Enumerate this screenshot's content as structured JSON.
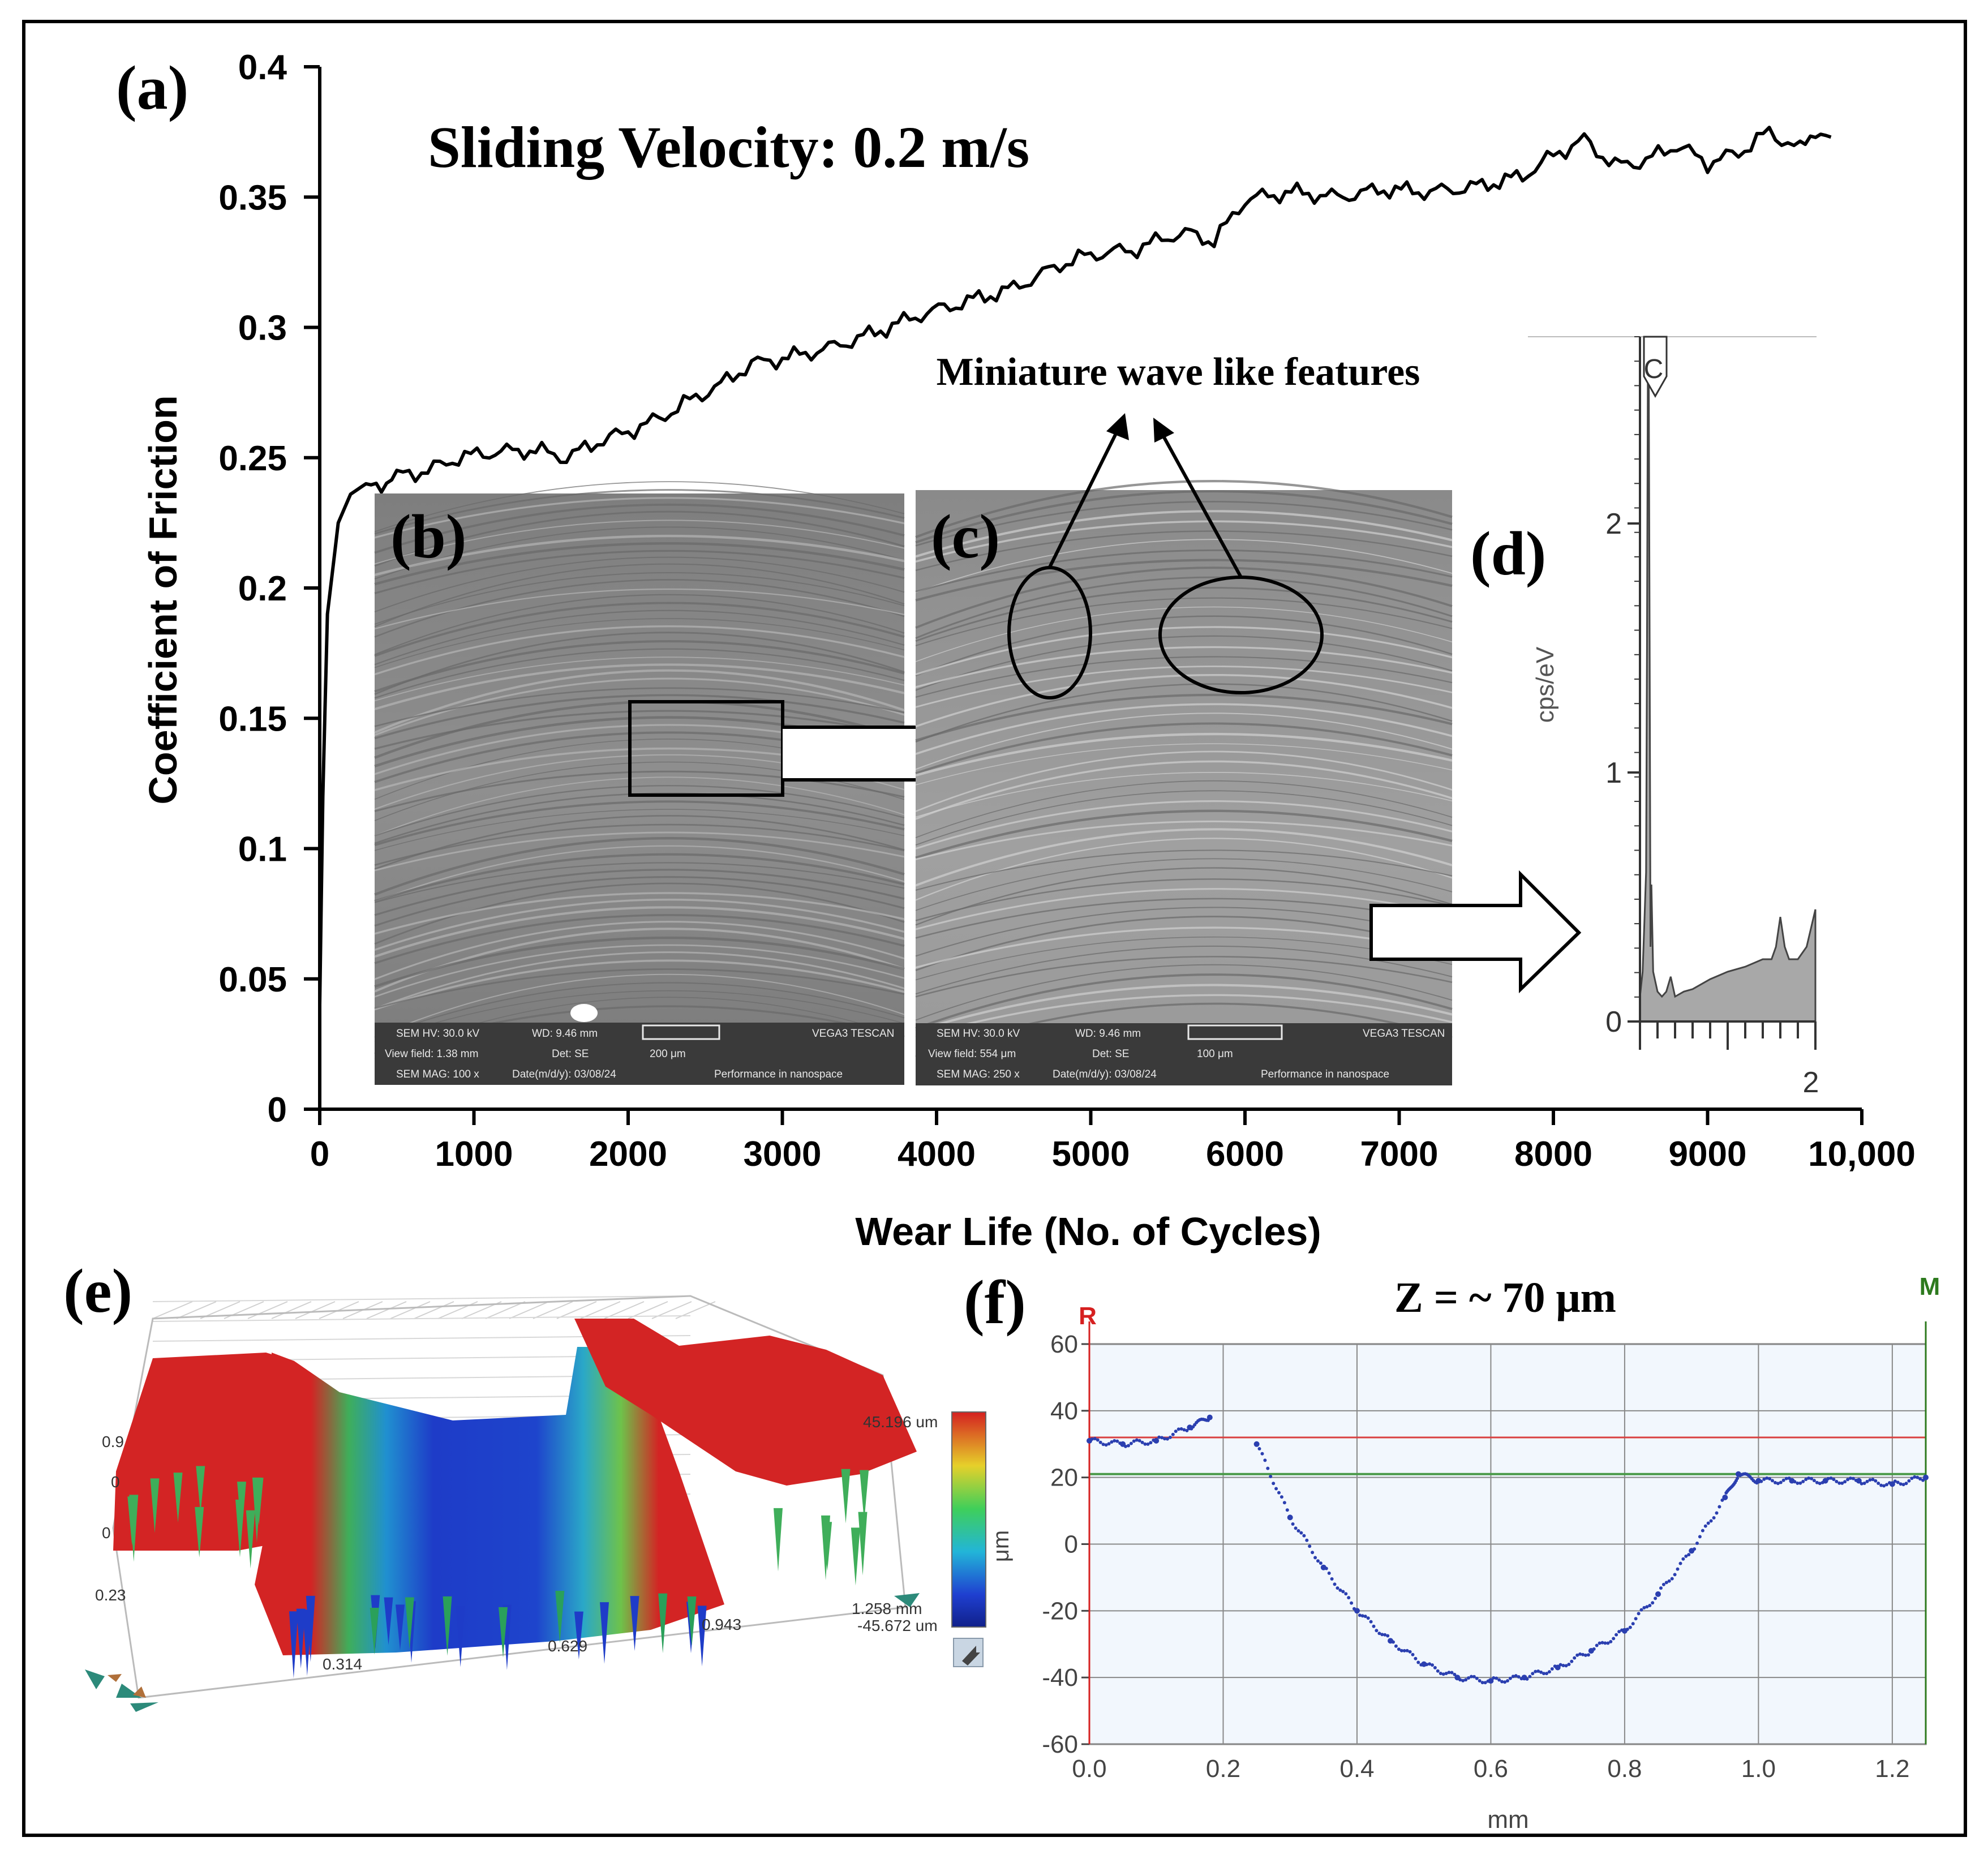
{
  "panels": {
    "a": "(a)",
    "b": "(b)",
    "c": "(c)",
    "d": "(d)",
    "e": "(e)",
    "f": "(f)"
  },
  "annotations": {
    "velocity": "Sliding Velocity: 0.2 m/s",
    "wave": "Miniature wave like features",
    "z_depth": "Z = ~ 70 μm"
  },
  "sem_b": {
    "hv": "SEM HV: 30.0 kV",
    "wd": "WD: 9.46 mm",
    "brand": "VEGA3 TESCAN",
    "view": "View field: 1.38 mm",
    "det": "Det: SE",
    "scale": "200 μm",
    "mag": "SEM MAG: 100 x",
    "date": "Date(m/d/y): 03/08/24",
    "tag": "Performance in nanospace"
  },
  "sem_c": {
    "hv": "SEM HV: 30.0 kV",
    "wd": "WD: 9.46 mm",
    "brand": "VEGA3 TESCAN",
    "view": "View field: 554 μm",
    "det": "Det: SE",
    "scale": "100 μm",
    "mag": "SEM MAG: 250 x",
    "date": "Date(m/d/y): 03/08/24",
    "tag": "Performance in nanospace"
  },
  "surface_e": {
    "ticks": [
      "0.314",
      "0.629",
      "0.943"
    ],
    "x_end": "1.258 mm",
    "z_max": "45.196 um",
    "z_min": "-45.672 um",
    "side_labels": [
      "0.9",
      "0",
      "0",
      "0.23"
    ]
  },
  "colors": {
    "line": "#000000",
    "profile": "#2b3fb0",
    "ref_red": "#d94040",
    "ref_green": "#4a9a4a",
    "marker_R": "#d62020",
    "marker_M": "#2d7a1e",
    "plot_bg": "#f2f7fd"
  },
  "chart_data": [
    {
      "id": "cof",
      "type": "line",
      "title": "Sliding Velocity: 0.2 m/s",
      "xlabel": "Wear Life (No. of Cycles)",
      "ylabel": "Coefficient of Friction",
      "xlim": [
        0,
        10000
      ],
      "ylim": [
        0,
        0.4
      ],
      "xticks": [
        0,
        1000,
        2000,
        3000,
        4000,
        5000,
        6000,
        7000,
        8000,
        9000,
        10000
      ],
      "xtick_labels": [
        "0",
        "1000",
        "2000",
        "3000",
        "4000",
        "5000",
        "6000",
        "7000",
        "8000",
        "9000",
        "10,000"
      ],
      "yticks": [
        0,
        0.05,
        0.1,
        0.15,
        0.2,
        0.25,
        0.3,
        0.35,
        0.4
      ],
      "ytick_labels": [
        "0",
        "0.05",
        "0.1",
        "0.15",
        "0.2",
        "0.25",
        "0.3",
        "0.35",
        "0.4"
      ],
      "x": [
        0,
        20,
        50,
        80,
        120,
        200,
        300,
        400,
        500,
        700,
        900,
        1100,
        1400,
        1600,
        1800,
        2000,
        2200,
        2400,
        2600,
        2800,
        3000,
        3300,
        3600,
        3900,
        4200,
        4500,
        4800,
        5000,
        5300,
        5500,
        5650,
        5800,
        6000,
        6300,
        6600,
        6900,
        7200,
        7500,
        7800,
        8000,
        8200,
        8400,
        8600,
        8800,
        9000,
        9200,
        9400,
        9600,
        9700,
        9800
      ],
      "y": [
        0.04,
        0.12,
        0.19,
        0.205,
        0.225,
        0.236,
        0.24,
        0.24,
        0.243,
        0.245,
        0.25,
        0.252,
        0.253,
        0.25,
        0.256,
        0.26,
        0.265,
        0.272,
        0.278,
        0.286,
        0.288,
        0.292,
        0.298,
        0.305,
        0.31,
        0.315,
        0.324,
        0.328,
        0.33,
        0.335,
        0.336,
        0.333,
        0.349,
        0.352,
        0.35,
        0.353,
        0.352,
        0.354,
        0.358,
        0.366,
        0.372,
        0.362,
        0.364,
        0.37,
        0.363,
        0.367,
        0.375,
        0.368,
        0.376,
        0.373
      ]
    },
    {
      "id": "eds",
      "type": "line",
      "ylabel": "cps/eV",
      "peak_label": "C",
      "xtick_labels": [
        "2"
      ],
      "yticks": [
        0,
        1,
        2
      ],
      "ytick_labels": [
        "0",
        "1",
        "2"
      ],
      "xlim": [
        0,
        2
      ],
      "ylim": [
        0,
        2.75
      ],
      "x": [
        0,
        0.03,
        0.05,
        0.07,
        0.08,
        0.09,
        0.1,
        0.11,
        0.12,
        0.13,
        0.15,
        0.2,
        0.25,
        0.3,
        0.35,
        0.4,
        0.5,
        0.6,
        0.8,
        1.0,
        1.2,
        1.4,
        1.5,
        1.55,
        1.6,
        1.65,
        1.7,
        1.8,
        1.9,
        2.0
      ],
      "y": [
        0.1,
        0.2,
        0.4,
        0.6,
        1.5,
        2.6,
        2.6,
        1.5,
        0.3,
        0.55,
        0.2,
        0.12,
        0.1,
        0.12,
        0.18,
        0.1,
        0.12,
        0.13,
        0.17,
        0.2,
        0.22,
        0.25,
        0.25,
        0.3,
        0.42,
        0.3,
        0.25,
        0.25,
        0.3,
        0.45
      ]
    },
    {
      "id": "profile",
      "type": "scatter",
      "title": "Z = ~ 70 μm",
      "xlabel": "mm",
      "ylabel": "μm",
      "xlim": [
        0,
        1.25
      ],
      "ylim": [
        -60,
        60
      ],
      "xticks": [
        0,
        0.2,
        0.4,
        0.6,
        0.8,
        1.0,
        1.2
      ],
      "xtick_labels": [
        "0.0",
        "0.2",
        "0.4",
        "0.6",
        "0.8",
        "1.0",
        "1.2"
      ],
      "yticks": [
        -60,
        -40,
        -20,
        0,
        20,
        40,
        60
      ],
      "ytick_labels": [
        "-60",
        "-40",
        "-20",
        "0",
        "20",
        "40",
        "60"
      ],
      "markers": [
        "R",
        "M"
      ],
      "reference_lines": {
        "red": 32,
        "green": 21
      },
      "x": [
        0.0,
        0.05,
        0.1,
        0.15,
        0.18,
        0.25,
        0.3,
        0.35,
        0.4,
        0.45,
        0.5,
        0.55,
        0.6,
        0.65,
        0.7,
        0.75,
        0.8,
        0.85,
        0.9,
        0.95,
        0.97,
        1.0,
        1.05,
        1.1,
        1.15,
        1.2,
        1.25
      ],
      "y": [
        31,
        30,
        31,
        35,
        38,
        30,
        8,
        -7,
        -20,
        -29,
        -36,
        -40,
        -41,
        -40,
        -37,
        -32,
        -26,
        -15,
        -2,
        14,
        21,
        19,
        19,
        19,
        19,
        18,
        20
      ]
    }
  ]
}
